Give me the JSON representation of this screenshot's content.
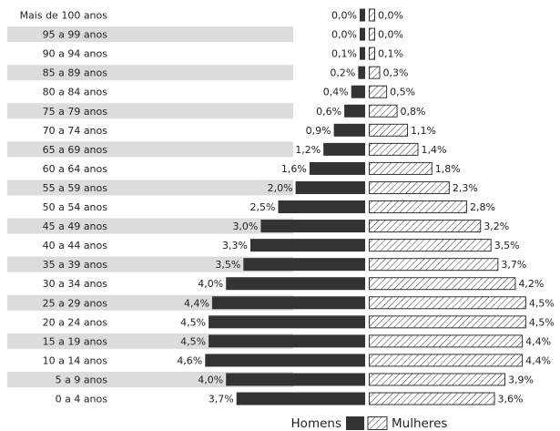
{
  "chart_data": {
    "type": "bar",
    "orientation": "horizontal",
    "layout": "population-pyramid",
    "categories": [
      "Mais de 100 anos",
      "95 a 99 anos",
      "90 a 94 anos",
      "85 a 89 anos",
      "80 a 84 anos",
      "75 a 79 anos",
      "70 a 74 anos",
      "65 a 69 anos",
      "60 a 64 anos",
      "55 a 59 anos",
      "50 a 54 anos",
      "45 a 49 anos",
      "40 a 44 anos",
      "35 a 39 anos",
      "30 a 34 anos",
      "25 a 29 anos",
      "20 a 24 anos",
      "15 a 19 anos",
      "10 a 14 anos",
      "5 a 9 anos",
      "0 a 4 anos"
    ],
    "series": [
      {
        "name": "Homens",
        "color": "#333333",
        "fill": "solid",
        "values": [
          0.0,
          0.0,
          0.1,
          0.2,
          0.4,
          0.6,
          0.9,
          1.2,
          1.6,
          2.0,
          2.5,
          3.0,
          3.3,
          3.5,
          4.0,
          4.4,
          4.5,
          4.5,
          4.6,
          4.0,
          3.7
        ],
        "labels": [
          "0,0%",
          "0,0%",
          "0,1%",
          "0,2%",
          "0,4%",
          "0,6%",
          "0,9%",
          "1,2%",
          "1,6%",
          "2,0%",
          "2,5%",
          "3,0%",
          "3,3%",
          "3,5%",
          "4,0%",
          "4,4%",
          "4,5%",
          "4,5%",
          "4,6%",
          "4,0%",
          "3,7%"
        ]
      },
      {
        "name": "Mulheres",
        "color": "#333333",
        "fill": "hatched",
        "values": [
          0.0,
          0.0,
          0.1,
          0.3,
          0.5,
          0.8,
          1.1,
          1.4,
          1.8,
          2.3,
          2.8,
          3.2,
          3.5,
          3.7,
          4.2,
          4.5,
          4.5,
          4.4,
          4.4,
          3.9,
          3.6
        ],
        "labels": [
          "0,0%",
          "0,0%",
          "0,1%",
          "0,3%",
          "0,5%",
          "0,8%",
          "1,1%",
          "1,4%",
          "1,8%",
          "2,3%",
          "2,8%",
          "3,2%",
          "3,5%",
          "3,7%",
          "4,2%",
          "4,5%",
          "4,5%",
          "4,4%",
          "4,4%",
          "3,9%",
          "3,6%"
        ]
      }
    ],
    "legend_position": "bottom-center",
    "stripe_color": "#dcdcdc",
    "grid": false
  }
}
